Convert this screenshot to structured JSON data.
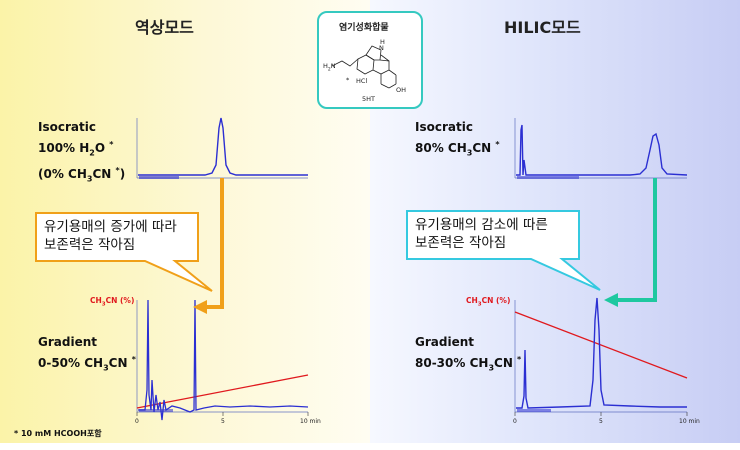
{
  "left": {
    "heading": "역상모드",
    "isocratic": {
      "line1": "Isocratic",
      "line2a": "100% H",
      "line2b": "O ",
      "line3a": "(0% CH",
      "line3b": "CN ",
      "line3c": ")"
    },
    "callout": {
      "line1": "유기용매의 증가에 따라",
      "line2": "보존력은 작아짐"
    },
    "gradient": {
      "line1": "Gradient",
      "line2a": "0-50% CH",
      "line2b": "CN "
    },
    "axis_title": {
      "a": "CH",
      "b": "CN (%)"
    },
    "ticks": [
      "0",
      "5",
      "10 min"
    ],
    "footnote": "* 10 mM HCOOH포함"
  },
  "right": {
    "heading": "HILIC모드",
    "isocratic": {
      "line1": "Isocratic",
      "line2a": "80% CH",
      "line2b": "CN "
    },
    "callout": {
      "line1": "유기용매의 감소에 따른",
      "line2": "보존력은 작아짐"
    },
    "gradient": {
      "line1": "Gradient",
      "line2a": "80-30% CH",
      "line2b": "CN "
    },
    "axis_title": {
      "a": "CH",
      "b": "CN (%)"
    },
    "ticks": [
      "0",
      "5",
      "10 min"
    ]
  },
  "structure": {
    "title": "염기성화합물",
    "nh": "H",
    "n": "N",
    "h2n": "H",
    "h2n_n": "N",
    "oh": "OH",
    "hcl": "HCl",
    "star": "*",
    "name": "5HT"
  },
  "symbols": {
    "asterisk": "*",
    "sub3": "3",
    "sub2": "2",
    "sup_star": "*"
  },
  "colors": {
    "chrom": "#2b2fd2",
    "gradient_line": "#e0191e",
    "orange": "#f0a019",
    "teal": "#1ec8a0"
  }
}
